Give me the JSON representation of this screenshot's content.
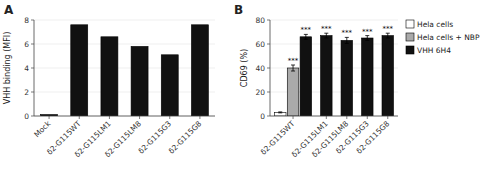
{
  "chart_data": [
    {
      "type": "bar",
      "title": "A",
      "categories": [
        "Mock",
        "δ2-G115WT",
        "δ2-G115LM1",
        "δ2-G115LM8",
        "δ2-G115G3",
        "δ2-G115G8"
      ],
      "values": [
        0.12,
        7.6,
        6.6,
        5.8,
        5.1,
        7.6
      ],
      "color": "#111111",
      "y_label": "VHH binding (MFI)",
      "ylim": [
        0,
        8
      ],
      "yticks": [
        0,
        2,
        4,
        6,
        8
      ]
    },
    {
      "type": "bar",
      "title": "B",
      "categories": [
        "δ2-G115WT",
        "δ2-G115LM1",
        "δ2-G115LM8",
        "δ2-G115G3",
        "δ2-G115G8"
      ],
      "series": [
        {
          "name": "Hela cells",
          "color": "#ffffff",
          "values": [
            3.0,
            null,
            null,
            null,
            null
          ],
          "errors": [
            0.4,
            null,
            null,
            null,
            null
          ],
          "annotations": [
            null,
            null,
            null,
            null,
            null
          ]
        },
        {
          "name": "Hela cells + NBP",
          "color": "#aaaaaa",
          "values": [
            40.0,
            null,
            null,
            null,
            null
          ],
          "errors": [
            2.5,
            null,
            null,
            null,
            null
          ],
          "annotations": [
            "***",
            null,
            null,
            null,
            null
          ]
        },
        {
          "name": "VHH 6H4",
          "color": "#111111",
          "values": [
            66.0,
            67.0,
            63.0,
            65.0,
            67.0
          ],
          "errors": [
            2.0,
            2.0,
            2.5,
            2.0,
            2.0
          ],
          "annotations": [
            "***",
            "***",
            "***",
            "***",
            "***"
          ]
        }
      ],
      "y_label": "CD69 (%)",
      "ylim": [
        0,
        80
      ],
      "yticks": [
        0,
        20,
        40,
        60,
        80
      ],
      "legend": "right"
    }
  ]
}
